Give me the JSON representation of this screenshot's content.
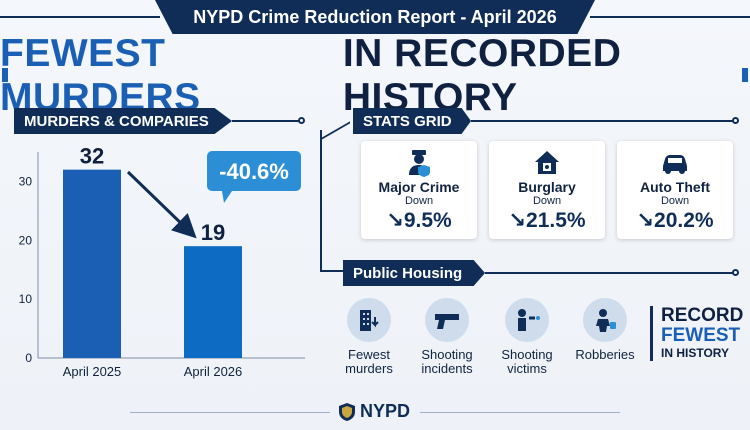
{
  "banner": {
    "title": "NYPD Crime Reduction Report - April 2026"
  },
  "headline": {
    "accent": "FEWEST MURDERS",
    "rest": "IN RECORDED HISTORY"
  },
  "sections": {
    "murders": "MURDERS & COMPARIES",
    "stats": "STATS GRID",
    "housing": "Public Housing"
  },
  "chart_data": {
    "type": "bar",
    "categories": [
      "April 2025",
      "April 2026"
    ],
    "values": [
      32,
      19
    ],
    "value_labels": [
      "32",
      "19"
    ],
    "ylim": [
      0,
      35
    ],
    "yticks": [
      0,
      10,
      20,
      30
    ],
    "change_label": "-40.6%",
    "colors": [
      "#1a5fb4",
      "#0e6bc4"
    ]
  },
  "stats": [
    {
      "icon": "officer-icon",
      "title": "Major Crime",
      "status": "Down",
      "value": "↘9.5%"
    },
    {
      "icon": "house-icon",
      "title": "Burglary",
      "status": "Down",
      "value": "↘21.5%"
    },
    {
      "icon": "car-icon",
      "title": "Auto Theft",
      "status": "Down",
      "value": "↘20.2%"
    }
  ],
  "housing": [
    {
      "icon": "building-icon",
      "label": "Fewest murders"
    },
    {
      "icon": "handgun-icon",
      "label": "Shooting incidents"
    },
    {
      "icon": "victim-icon",
      "label": "Shooting victims"
    },
    {
      "icon": "robber-icon",
      "label": "Robberies"
    }
  ],
  "record": {
    "line1": "RECORD",
    "line2": "FEWEST",
    "line3": "IN HISTORY"
  },
  "footer": {
    "logo_text": "NYPD"
  },
  "colors": {
    "navy": "#0f2d57",
    "accent_blue": "#1a5fb4",
    "callout": "#2c8fd6"
  }
}
